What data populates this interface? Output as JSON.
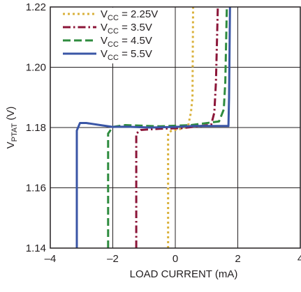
{
  "chart_data": {
    "type": "line",
    "xlabel": "LOAD CURRENT (mA)",
    "ylabel": {
      "main": "V",
      "sub": "PTAT",
      "unit": " (V)"
    },
    "xlim": [
      -4,
      4
    ],
    "ylim": [
      1.14,
      1.22
    ],
    "xticks": [
      "–4",
      "–2",
      "0",
      "2",
      "4"
    ],
    "yticks": [
      "1.14",
      "1.16",
      "1.18",
      "1.20",
      "1.22"
    ],
    "grid": true,
    "legend_position": "top-left",
    "series": [
      {
        "name": "VCC = 2.25V",
        "label": {
          "pre": "V",
          "sub": "CC",
          "post": " = 2.25V"
        },
        "color": "#d9b13b",
        "dash": "3,4",
        "points": [
          [
            -0.23,
            1.14
          ],
          [
            -0.23,
            1.178
          ],
          [
            -0.12,
            1.179
          ],
          [
            0.15,
            1.1795
          ],
          [
            0.35,
            1.1802
          ],
          [
            0.42,
            1.181
          ],
          [
            0.5,
            1.185
          ],
          [
            0.55,
            1.19
          ],
          [
            0.57,
            1.22
          ]
        ]
      },
      {
        "name": "VCC = 3.5V",
        "label": {
          "pre": "V",
          "sub": "CC",
          "post": " = 3.5V"
        },
        "color": "#8b1538",
        "dash": "11,4,2.5,4",
        "points": [
          [
            -1.25,
            1.14
          ],
          [
            -1.25,
            1.178
          ],
          [
            -1.1,
            1.1792
          ],
          [
            -0.5,
            1.1796
          ],
          [
            0.2,
            1.1798
          ],
          [
            0.9,
            1.1806
          ],
          [
            1.15,
            1.181
          ],
          [
            1.25,
            1.185
          ],
          [
            1.3,
            1.195
          ],
          [
            1.36,
            1.22
          ]
        ]
      },
      {
        "name": "VCC = 4.5V",
        "label": {
          "pre": "V",
          "sub": "CC",
          "post": " = 4.5V"
        },
        "color": "#2e8b3e",
        "dash": "11,5",
        "points": [
          [
            -2.15,
            1.14
          ],
          [
            -2.15,
            1.178
          ],
          [
            -2.0,
            1.1802
          ],
          [
            -1.6,
            1.1808
          ],
          [
            -0.5,
            1.1804
          ],
          [
            0.5,
            1.1808
          ],
          [
            1.4,
            1.182
          ],
          [
            1.55,
            1.186
          ],
          [
            1.6,
            1.195
          ],
          [
            1.65,
            1.22
          ]
        ]
      },
      {
        "name": "VCC = 5.5V",
        "label": {
          "pre": "V",
          "sub": "CC",
          "post": " = 5.5V"
        },
        "color": "#3a56a6",
        "dash": "",
        "points": [
          [
            -3.15,
            1.14
          ],
          [
            -3.15,
            1.179
          ],
          [
            -3.05,
            1.1815
          ],
          [
            -2.85,
            1.1815
          ],
          [
            -2.4,
            1.1808
          ],
          [
            -2.0,
            1.1802
          ],
          [
            -1.6,
            1.1803
          ],
          [
            -0.8,
            1.18
          ],
          [
            0.0,
            1.1802
          ],
          [
            0.6,
            1.1805
          ],
          [
            1.2,
            1.1805
          ],
          [
            1.7,
            1.1805
          ],
          [
            1.72,
            1.19
          ],
          [
            1.75,
            1.22
          ]
        ]
      }
    ]
  }
}
